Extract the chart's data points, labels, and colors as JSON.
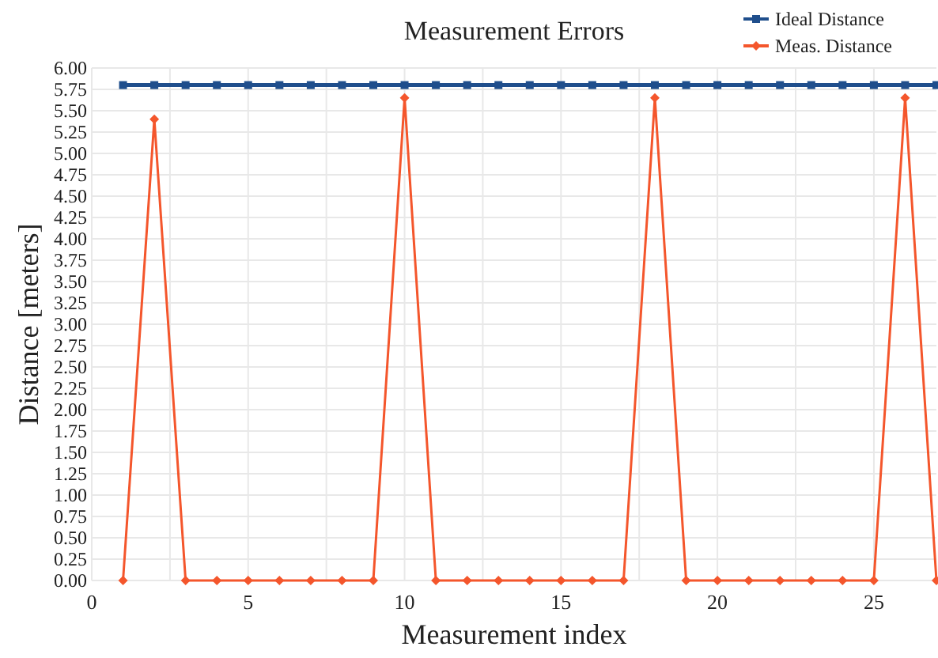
{
  "chart_data": {
    "type": "line",
    "title": "Measurement Errors",
    "xlabel": "Measurement index",
    "ylabel": "Distance [meters]",
    "x": [
      1,
      2,
      3,
      4,
      5,
      6,
      7,
      8,
      9,
      10,
      11,
      12,
      13,
      14,
      15,
      16,
      17,
      18,
      19,
      20,
      21,
      22,
      23,
      24,
      25,
      26,
      27
    ],
    "series": [
      {
        "name": "Ideal Distance",
        "color": "#1f4e8c",
        "marker": "square",
        "values": [
          5.8,
          5.8,
          5.8,
          5.8,
          5.8,
          5.8,
          5.8,
          5.8,
          5.8,
          5.8,
          5.8,
          5.8,
          5.8,
          5.8,
          5.8,
          5.8,
          5.8,
          5.8,
          5.8,
          5.8,
          5.8,
          5.8,
          5.8,
          5.8,
          5.8,
          5.8,
          5.8
        ]
      },
      {
        "name": "Meas. Distance",
        "color": "#f4562c",
        "marker": "diamond",
        "values": [
          0,
          5.4,
          0,
          0,
          0,
          0,
          0,
          0,
          0,
          5.65,
          0,
          0,
          0,
          0,
          0,
          0,
          0,
          5.65,
          0,
          0,
          0,
          0,
          0,
          0,
          0,
          5.65,
          0
        ]
      }
    ],
    "xlim": [
      0,
      27
    ],
    "xticks": [
      0,
      {
        "value": 2.5,
        "label": null
      },
      5,
      {
        "value": 7.5,
        "label": null
      },
      10,
      {
        "value": 12.5,
        "label": null
      },
      15,
      {
        "value": 17.5,
        "label": null
      },
      20,
      {
        "value": 22.5,
        "label": null
      },
      25
    ],
    "ylim": [
      0,
      6
    ],
    "yticks": [
      {
        "value": 0,
        "label": "0.00"
      },
      {
        "value": 0.25,
        "label": "0.25"
      },
      {
        "value": 0.5,
        "label": "0.50"
      },
      {
        "value": 0.75,
        "label": "0.75"
      },
      {
        "value": 1,
        "label": "1.00"
      },
      {
        "value": 1.25,
        "label": "1.25"
      },
      {
        "value": 1.5,
        "label": "1.50"
      },
      {
        "value": 1.75,
        "label": "1.75"
      },
      {
        "value": 2,
        "label": "2.00"
      },
      {
        "value": 2.25,
        "label": "2.25"
      },
      {
        "value": 2.5,
        "label": "2.50"
      },
      {
        "value": 2.75,
        "label": "2.75"
      },
      {
        "value": 3,
        "label": "3.00"
      },
      {
        "value": 3.25,
        "label": "3.25"
      },
      {
        "value": 3.5,
        "label": "3.50"
      },
      {
        "value": 3.75,
        "label": "3.75"
      },
      {
        "value": 4,
        "label": "4.00"
      },
      {
        "value": 4.25,
        "label": "4.25"
      },
      {
        "value": 4.5,
        "label": "4.50"
      },
      {
        "value": 4.75,
        "label": "4.75"
      },
      {
        "value": 5,
        "label": "5.00"
      },
      {
        "value": 5.25,
        "label": "5.25"
      },
      {
        "value": 5.5,
        "label": "5.50"
      },
      {
        "value": 5.75,
        "label": "5.75"
      },
      {
        "value": 6,
        "label": "6.00"
      }
    ],
    "grid": true,
    "legend": "top right"
  }
}
